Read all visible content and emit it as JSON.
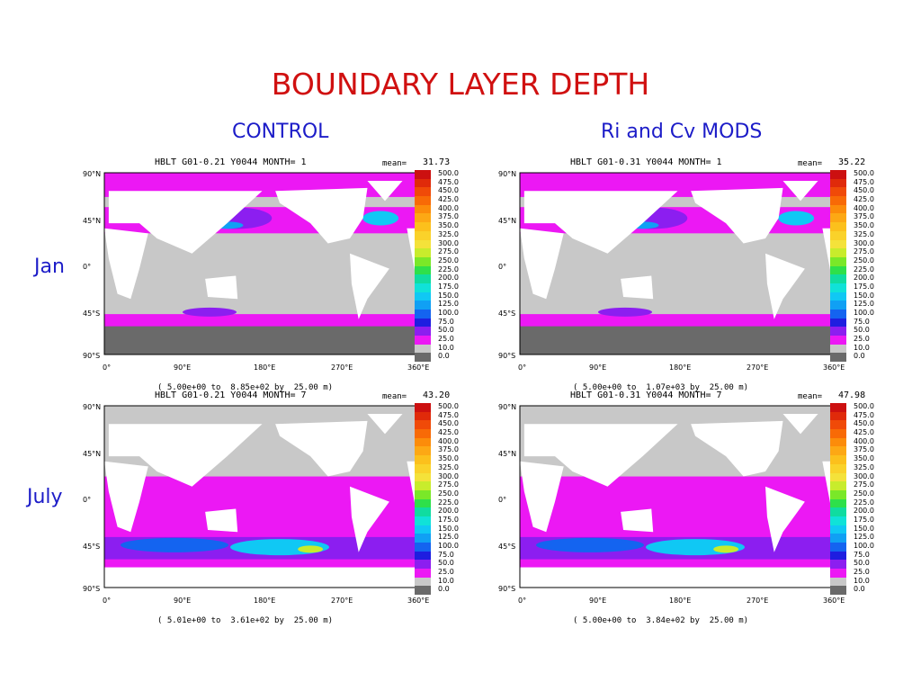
{
  "title": "BOUNDARY LAYER DEPTH",
  "columns": [
    "CONTROL",
    "Ri and Cv MODS"
  ],
  "rows": [
    "Jan",
    "July"
  ],
  "lat_labels": [
    "90°N",
    "45°N",
    "0°",
    "45°S",
    "90°S"
  ],
  "lon_labels": [
    "0°",
    "90°E",
    "180°E",
    "270°E",
    "360°E"
  ],
  "mean_label": "mean=",
  "legend_levels": [
    "500.0",
    "475.0",
    "450.0",
    "425.0",
    "400.0",
    "375.0",
    "350.0",
    "325.0",
    "300.0",
    "275.0",
    "250.0",
    "225.0",
    "200.0",
    "175.0",
    "150.0",
    "125.0",
    "100.0",
    "75.0",
    "50.0",
    "25.0",
    "10.0",
    "0.0"
  ],
  "legend_colors": [
    "#cc1010",
    "#e02a0a",
    "#f04a08",
    "#f86a06",
    "#fc8c0a",
    "#fda814",
    "#fcc01c",
    "#fad22a",
    "#f4e23a",
    "#c8ec2c",
    "#7ae828",
    "#2ee04a",
    "#10dca0",
    "#10e2d8",
    "#10c8f4",
    "#10a0f4",
    "#1464f0",
    "#1e1ee0",
    "#8c1ef0",
    "#ec18f4",
    "#c8c8c8",
    "#6a6a6a"
  ],
  "panels": [
    {
      "title": "HBLT G01-0.21 Y0044 MONTH= 1",
      "mean": "31.73",
      "range": "( 5.00e+00 to  8.85e+02 by  25.00 m)"
    },
    {
      "title": "HBLT G01-0.31 Y0044 MONTH= 1",
      "mean": "35.22",
      "range": "( 5.00e+00 to  1.07e+03 by  25.00 m)"
    },
    {
      "title": "HBLT G01-0.21 Y0044 MONTH= 7",
      "mean": "43.20",
      "range": "( 5.01e+00 to  3.61e+02 by  25.00 m)"
    },
    {
      "title": "HBLT G01-0.31 Y0044 MONTH= 7",
      "mean": "47.98",
      "range": "( 5.00e+00 to  3.84e+02 by  25.00 m)"
    }
  ]
}
